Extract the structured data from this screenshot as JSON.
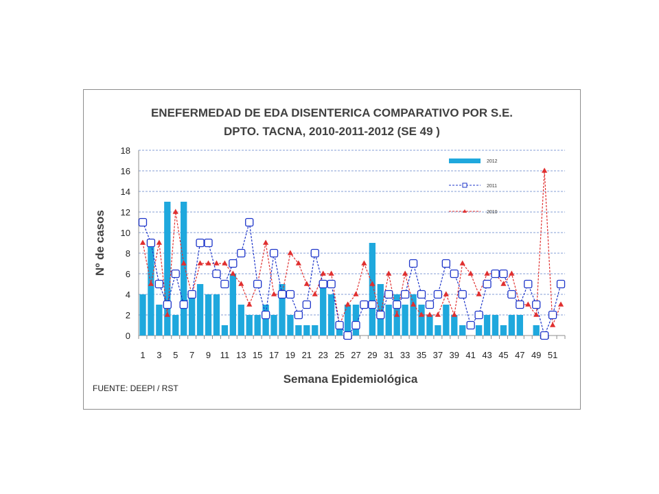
{
  "title_line1": "ENEFERMEDAD DE EDA DISENTERICA COMPARATIVO POR S.E.",
  "title_line2": "DPTO.  TACNA, 2010-2011-2012 (SE 49 )",
  "source": "FUENTE: DEEPI  / RST",
  "colors": {
    "bar2012": "#1fa8dd",
    "line2011": "#1b33c9",
    "line2010": "#e02f2f",
    "grid": "#5b7fc7"
  },
  "chart_data": {
    "type": "bar",
    "xlabel": "Semana Epidemiológica",
    "ylabel": "Nº de casos",
    "ylim": [
      0,
      18
    ],
    "yticks": [
      0,
      2,
      4,
      6,
      8,
      10,
      12,
      14,
      16,
      18
    ],
    "xtick_labels": [
      "1",
      "3",
      "5",
      "7",
      "9",
      "11",
      "13",
      "15",
      "17",
      "19",
      "21",
      "23",
      "25",
      "27",
      "29",
      "31",
      "33",
      "35",
      "37",
      "39",
      "41",
      "43",
      "45",
      "47",
      "49",
      "51"
    ],
    "grid": true,
    "legend_position": "top-right",
    "categories": [
      1,
      2,
      3,
      4,
      5,
      6,
      7,
      8,
      9,
      10,
      11,
      12,
      13,
      14,
      15,
      16,
      17,
      18,
      19,
      20,
      21,
      22,
      23,
      24,
      25,
      26,
      27,
      28,
      29,
      30,
      31,
      32,
      33,
      34,
      35,
      36,
      37,
      38,
      39,
      40,
      41,
      42,
      43,
      44,
      45,
      46,
      47,
      48,
      49,
      50,
      51,
      52
    ],
    "series": [
      {
        "name": "2012",
        "kind": "bar",
        "values": [
          4,
          9,
          3,
          13,
          2,
          13,
          4,
          5,
          4,
          4,
          1,
          6,
          3,
          2,
          2,
          3,
          2,
          5,
          2,
          1,
          1,
          1,
          5,
          4,
          1,
          3,
          3,
          null,
          9,
          5,
          3,
          4,
          3,
          4,
          3,
          2,
          1,
          3,
          2,
          1,
          null,
          1,
          2,
          2,
          1,
          2,
          2,
          null,
          1,
          null,
          null,
          null
        ]
      },
      {
        "name": "2011",
        "kind": "line",
        "values": [
          11,
          9,
          5,
          3,
          6,
          3,
          4,
          9,
          9,
          6,
          5,
          7,
          8,
          11,
          5,
          2,
          8,
          4,
          4,
          2,
          3,
          8,
          5,
          5,
          1,
          0,
          1,
          3,
          3,
          2,
          4,
          3,
          4,
          7,
          4,
          3,
          4,
          7,
          6,
          4,
          1,
          2,
          5,
          6,
          6,
          4,
          3,
          5,
          3,
          0,
          2,
          5
        ]
      },
      {
        "name": "2010",
        "kind": "line",
        "values": [
          9,
          5,
          9,
          2,
          12,
          7,
          4,
          7,
          7,
          7,
          7,
          6,
          5,
          3,
          5,
          9,
          4,
          4,
          8,
          7,
          5,
          4,
          6,
          6,
          1,
          3,
          4,
          7,
          5,
          2,
          6,
          2,
          6,
          3,
          2,
          2,
          2,
          4,
          2,
          7,
          6,
          4,
          6,
          6,
          5,
          6,
          3,
          3,
          2,
          16,
          1,
          3
        ]
      }
    ]
  }
}
